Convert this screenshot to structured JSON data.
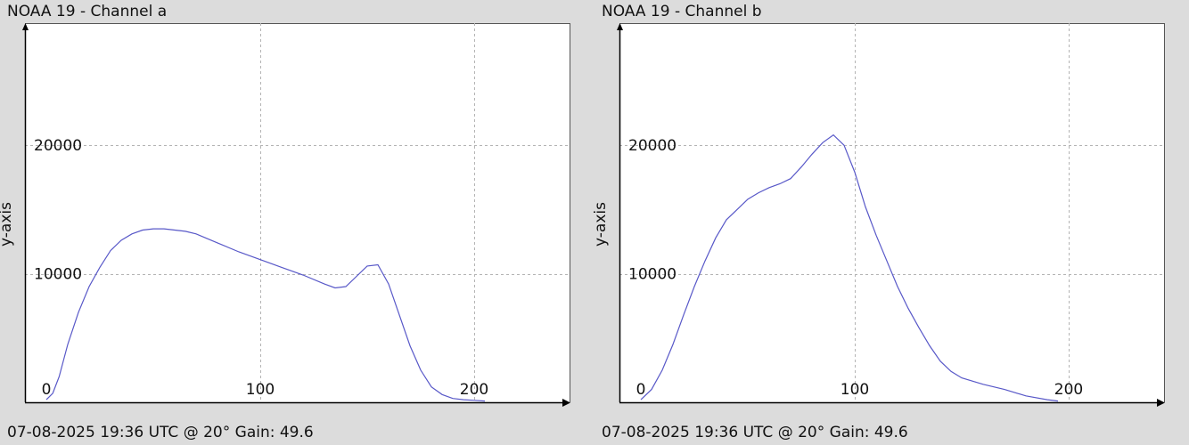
{
  "panels": [
    {
      "title": "NOAA 19 - Channel a",
      "footer": "07-08-2025 19:36 UTC @ 20° Gain: 49.6"
    },
    {
      "title": "NOAA 19 - Channel b",
      "footer": "07-08-2025 19:36 UTC @ 20° Gain: 49.6"
    }
  ],
  "chart_data": [
    {
      "type": "line",
      "title": "NOAA 19 - Channel a",
      "xlabel": "",
      "ylabel": "y-axis",
      "xlim": [
        -10,
        245
      ],
      "ylim": [
        0,
        29500
      ],
      "x_ticks": [
        0,
        100,
        200
      ],
      "y_ticks": [
        10000,
        20000
      ],
      "grid": true,
      "line_color": "#5858c8",
      "series": [
        {
          "x": [
            0,
            3,
            6,
            10,
            15,
            20,
            25,
            30,
            35,
            40,
            45,
            50,
            55,
            60,
            65,
            70,
            80,
            90,
            100,
            110,
            120,
            130,
            135,
            140,
            145,
            150,
            155,
            160,
            165,
            170,
            175,
            180,
            185,
            190,
            195,
            200,
            205
          ],
          "y": [
            200,
            700,
            2000,
            4500,
            7000,
            9000,
            10500,
            11800,
            12600,
            13100,
            13400,
            13500,
            13500,
            13400,
            13300,
            13100,
            12400,
            11700,
            11100,
            10500,
            9900,
            9200,
            8900,
            9000,
            9800,
            10600,
            10700,
            9200,
            6800,
            4400,
            2500,
            1200,
            600,
            300,
            200,
            150,
            100
          ]
        }
      ]
    },
    {
      "type": "line",
      "title": "NOAA 19 - Channel b",
      "xlabel": "",
      "ylabel": "y-axis",
      "xlim": [
        -10,
        245
      ],
      "ylim": [
        0,
        29500
      ],
      "x_ticks": [
        0,
        100,
        200
      ],
      "y_ticks": [
        10000,
        20000
      ],
      "grid": true,
      "line_color": "#5858c8",
      "series": [
        {
          "x": [
            0,
            5,
            10,
            15,
            20,
            25,
            30,
            35,
            40,
            45,
            50,
            55,
            60,
            65,
            70,
            75,
            80,
            85,
            90,
            95,
            100,
            105,
            110,
            115,
            120,
            125,
            130,
            135,
            140,
            145,
            150,
            160,
            170,
            180,
            190,
            195
          ],
          "y": [
            200,
            1000,
            2500,
            4500,
            6800,
            9000,
            11000,
            12800,
            14200,
            15000,
            15800,
            16300,
            16700,
            17000,
            17400,
            18300,
            19300,
            20200,
            20800,
            20000,
            17900,
            15200,
            13000,
            11000,
            9000,
            7300,
            5800,
            4400,
            3200,
            2400,
            1900,
            1400,
            1000,
            500,
            200,
            100
          ]
        }
      ]
    }
  ]
}
